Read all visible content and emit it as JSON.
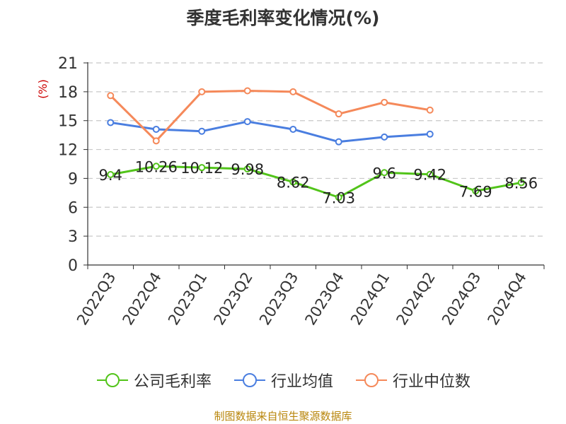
{
  "chart_data": {
    "type": "line",
    "title": "季度毛利率变化情况(%)",
    "ylabel": "(%)",
    "categories": [
      "2022Q3",
      "2022Q4",
      "2023Q1",
      "2023Q2",
      "2023Q3",
      "2023Q4",
      "2024Q1",
      "2024Q2",
      "2024Q3",
      "2024Q4"
    ],
    "ylim": [
      0,
      21
    ],
    "yticks": [
      0,
      3,
      6,
      9,
      12,
      15,
      18,
      21
    ],
    "grid": true,
    "legend_position": "bottom",
    "series": [
      {
        "name": "公司毛利率",
        "color": "#52c41a",
        "values": [
          9.4,
          10.26,
          10.12,
          9.98,
          8.62,
          7.03,
          9.6,
          9.42,
          7.69,
          8.56
        ],
        "labels": [
          "9.4",
          "10.26",
          "10.12",
          "9.98",
          "8.62",
          "7.03",
          "9.6",
          "9.42",
          "7.69",
          "8.56"
        ]
      },
      {
        "name": "行业均值",
        "color": "#4a7ee0",
        "values": [
          14.8,
          14.1,
          13.9,
          14.9,
          14.1,
          12.8,
          13.3,
          13.6,
          null,
          null
        ]
      },
      {
        "name": "行业中位数",
        "color": "#f5895a",
        "values": [
          17.6,
          12.9,
          18.0,
          18.1,
          18.0,
          15.7,
          16.9,
          16.1,
          null,
          null
        ]
      }
    ]
  },
  "source": "制图数据来自恒生聚源数据库"
}
